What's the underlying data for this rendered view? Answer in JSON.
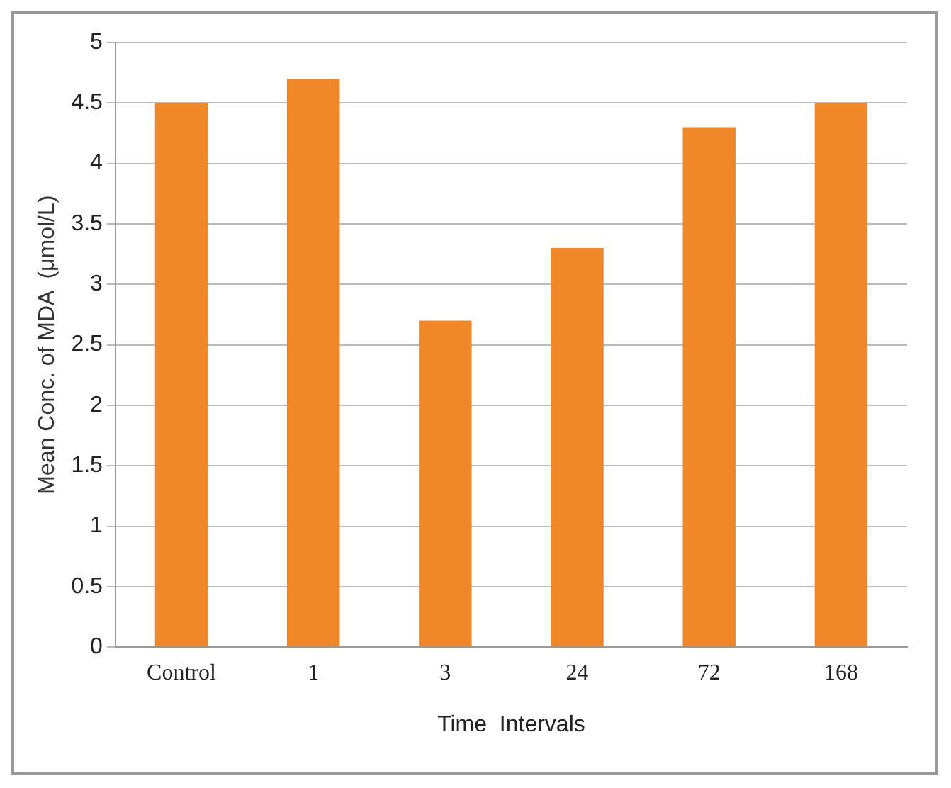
{
  "chart_data": {
    "type": "bar",
    "xlabel": "Time  Intervals",
    "ylabel": "Mean Conc. of MDA  (μmol/L)",
    "categories": [
      "Control",
      "1",
      "3",
      "24",
      "72",
      "168"
    ],
    "values": [
      4.5,
      4.7,
      2.7,
      3.3,
      4.3,
      4.5
    ],
    "color": "#f0882a",
    "ylim": [
      0,
      5
    ],
    "yticks": [
      0,
      0.5,
      1,
      1.5,
      2,
      2.5,
      3,
      3.5,
      4,
      4.5,
      5
    ],
    "grid": "y"
  }
}
